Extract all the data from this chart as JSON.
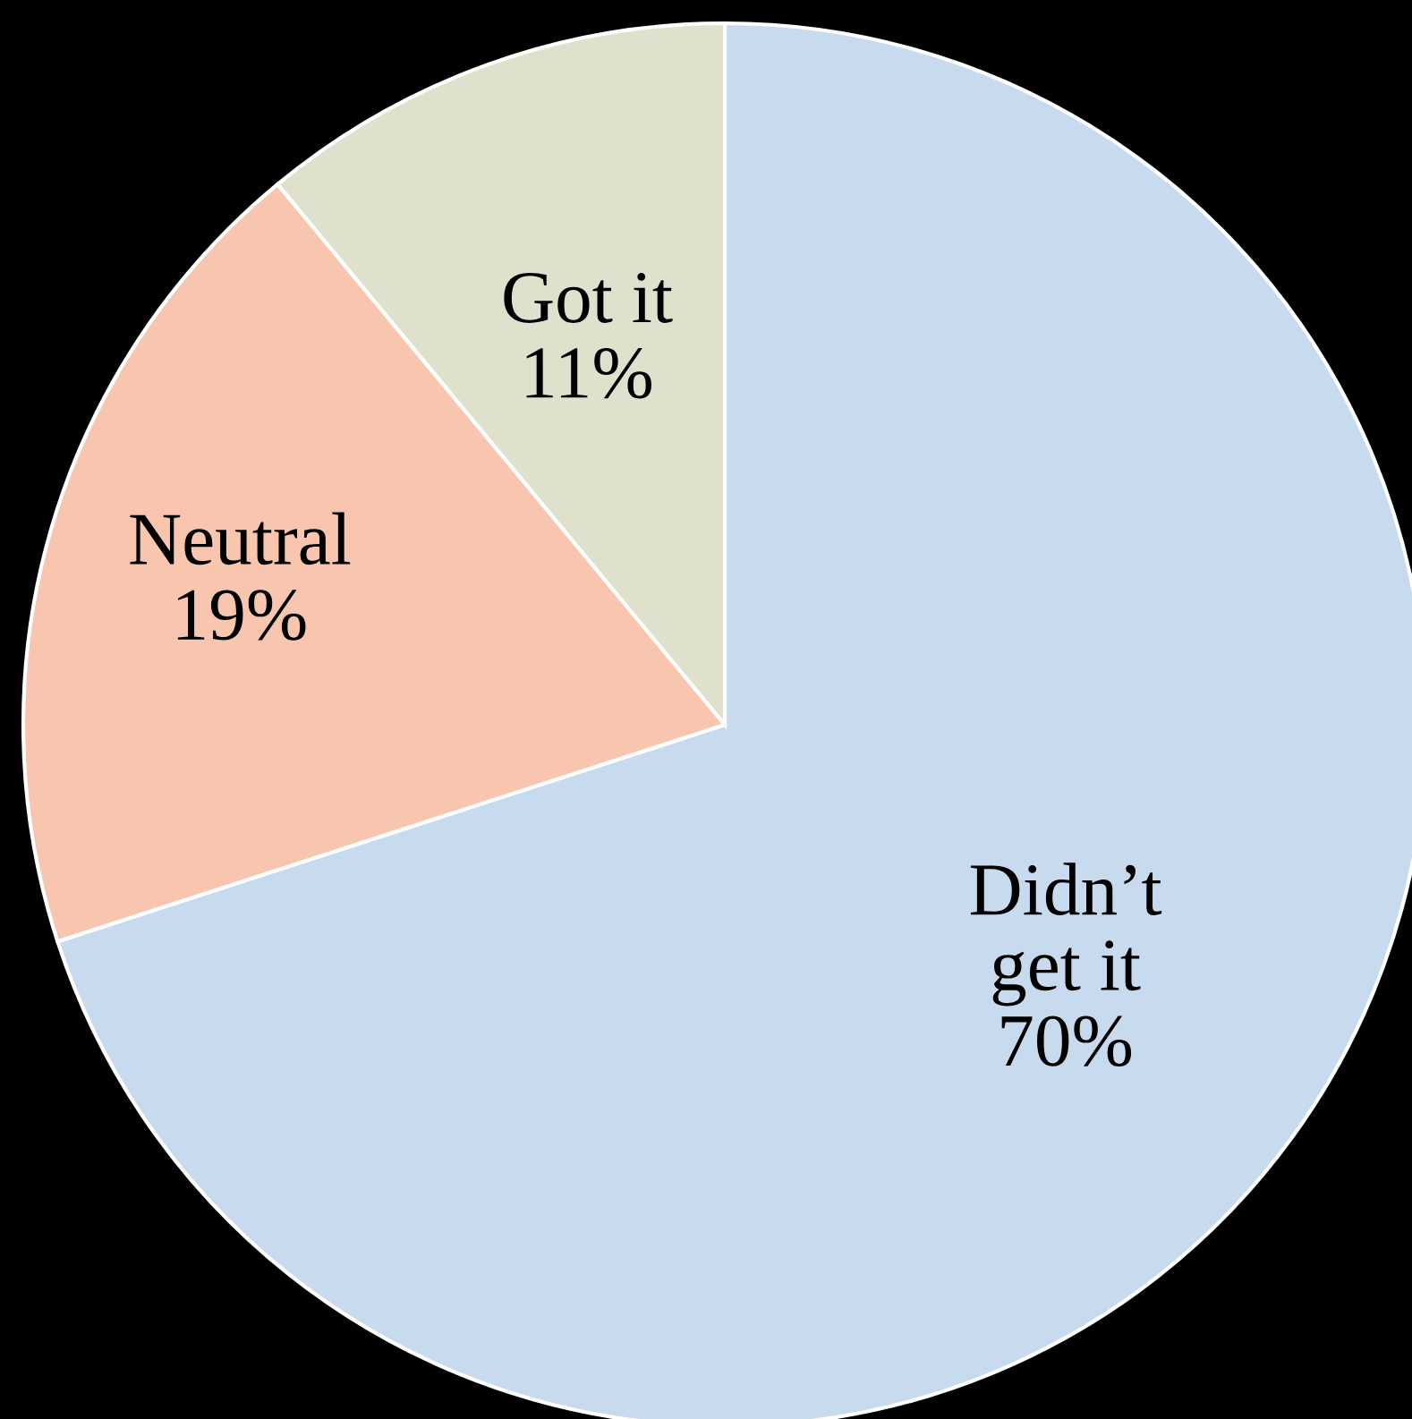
{
  "chart_data": {
    "type": "pie",
    "categories": [
      "Didn’t\nget it",
      "Neutral",
      "Got it"
    ],
    "values": [
      70,
      19,
      11
    ],
    "colors": [
      "#c8dbee",
      "#f8c5ae",
      "#dfe1cd"
    ],
    "value_labels": [
      "70%",
      "19%",
      "11%"
    ]
  }
}
